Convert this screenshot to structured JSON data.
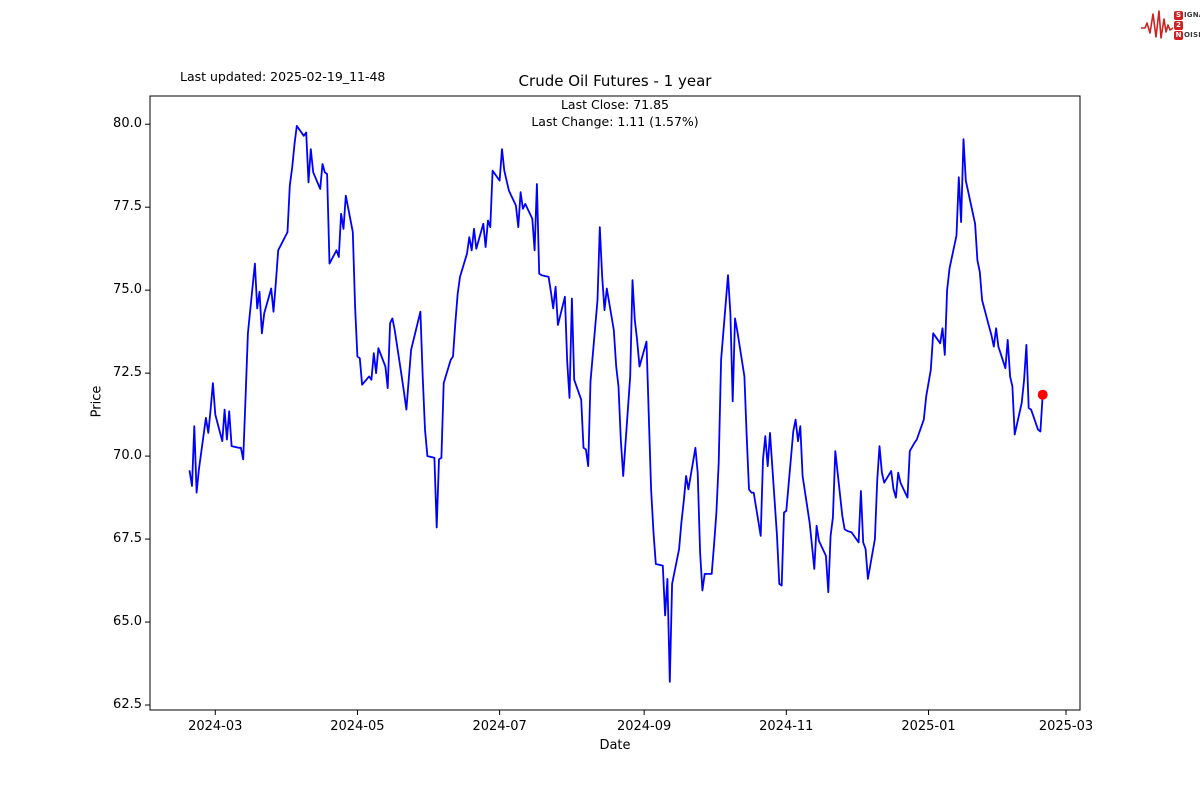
{
  "header": {
    "last_updated": "Last updated: 2025-02-19_11-48",
    "title": "Crude Oil Futures - 1 year",
    "subtitle_close": "Last Close: 71.85",
    "subtitle_change": "Last Change: 1.11 (1.57%)"
  },
  "logo": {
    "color": "#cc2222",
    "rows": [
      {
        "box": "S",
        "rest": "IGNAL"
      },
      {
        "box": "2",
        "rest": ""
      },
      {
        "box": "N",
        "rest": "OISE"
      }
    ]
  },
  "chart_data": {
    "type": "line",
    "title": "Crude Oil Futures - 1 year",
    "xlabel": "Date",
    "ylabel": "Price",
    "legend": "none",
    "grid": false,
    "line_color": "#0000ff",
    "last_point_color": "#ff0000",
    "last_close": 71.85,
    "last_change": 1.11,
    "last_change_pct": 1.57,
    "ylim": [
      62.35,
      80.85
    ],
    "xlim": [
      "2024-02-02",
      "2025-03-07"
    ],
    "y_ticks": [
      62.5,
      65.0,
      67.5,
      70.0,
      72.5,
      75.0,
      77.5,
      80.0
    ],
    "x_ticks": [
      {
        "date": "2024-03-01",
        "label": "2024-03"
      },
      {
        "date": "2024-05-01",
        "label": "2024-05"
      },
      {
        "date": "2024-07-01",
        "label": "2024-07"
      },
      {
        "date": "2024-09-01",
        "label": "2024-09"
      },
      {
        "date": "2024-11-01",
        "label": "2024-11"
      },
      {
        "date": "2025-01-01",
        "label": "2025-01"
      },
      {
        "date": "2025-03-01",
        "label": "2025-03"
      }
    ],
    "series": [
      {
        "name": "Crude Oil Futures",
        "points": [
          [
            "2024-02-19",
            69.55
          ],
          [
            "2024-02-20",
            69.1
          ],
          [
            "2024-02-21",
            70.9
          ],
          [
            "2024-02-22",
            68.9
          ],
          [
            "2024-02-23",
            69.6
          ],
          [
            "2024-02-26",
            71.15
          ],
          [
            "2024-02-27",
            70.7
          ],
          [
            "2024-02-28",
            71.4
          ],
          [
            "2024-02-29",
            72.2
          ],
          [
            "2024-03-01",
            71.25
          ],
          [
            "2024-03-04",
            70.45
          ],
          [
            "2024-03-05",
            71.4
          ],
          [
            "2024-03-06",
            70.5
          ],
          [
            "2024-03-07",
            71.35
          ],
          [
            "2024-03-08",
            70.3
          ],
          [
            "2024-03-11",
            70.25
          ],
          [
            "2024-03-12",
            70.25
          ],
          [
            "2024-03-13",
            69.9
          ],
          [
            "2024-03-14",
            71.8
          ],
          [
            "2024-03-15",
            73.7
          ],
          [
            "2024-03-18",
            75.8
          ],
          [
            "2024-03-19",
            74.45
          ],
          [
            "2024-03-20",
            74.95
          ],
          [
            "2024-03-21",
            73.7
          ],
          [
            "2024-03-22",
            74.3
          ],
          [
            "2024-03-25",
            75.05
          ],
          [
            "2024-03-26",
            74.35
          ],
          [
            "2024-03-27",
            75.25
          ],
          [
            "2024-03-28",
            76.2
          ],
          [
            "2024-04-01",
            76.75
          ],
          [
            "2024-04-02",
            78.15
          ],
          [
            "2024-04-03",
            78.7
          ],
          [
            "2024-04-04",
            79.4
          ],
          [
            "2024-04-05",
            79.95
          ],
          [
            "2024-04-08",
            79.65
          ],
          [
            "2024-04-09",
            79.75
          ],
          [
            "2024-04-10",
            78.25
          ],
          [
            "2024-04-11",
            79.25
          ],
          [
            "2024-04-12",
            78.55
          ],
          [
            "2024-04-15",
            78.05
          ],
          [
            "2024-04-16",
            78.8
          ],
          [
            "2024-04-17",
            78.55
          ],
          [
            "2024-04-18",
            78.5
          ],
          [
            "2024-04-19",
            75.8
          ],
          [
            "2024-04-22",
            76.2
          ],
          [
            "2024-04-23",
            76.0
          ],
          [
            "2024-04-24",
            77.3
          ],
          [
            "2024-04-25",
            76.85
          ],
          [
            "2024-04-26",
            77.85
          ],
          [
            "2024-04-29",
            76.75
          ],
          [
            "2024-04-30",
            74.5
          ],
          [
            "2024-05-01",
            73.0
          ],
          [
            "2024-05-02",
            72.95
          ],
          [
            "2024-05-03",
            72.15
          ],
          [
            "2024-05-06",
            72.4
          ],
          [
            "2024-05-07",
            72.3
          ],
          [
            "2024-05-08",
            73.1
          ],
          [
            "2024-05-09",
            72.5
          ],
          [
            "2024-05-10",
            73.25
          ],
          [
            "2024-05-13",
            72.7
          ],
          [
            "2024-05-14",
            72.05
          ],
          [
            "2024-05-15",
            74.0
          ],
          [
            "2024-05-16",
            74.15
          ],
          [
            "2024-05-17",
            73.8
          ],
          [
            "2024-05-20",
            72.4
          ],
          [
            "2024-05-21",
            71.9
          ],
          [
            "2024-05-22",
            71.4
          ],
          [
            "2024-05-23",
            72.3
          ],
          [
            "2024-05-24",
            73.2
          ],
          [
            "2024-05-28",
            74.35
          ],
          [
            "2024-05-29",
            72.4
          ],
          [
            "2024-05-30",
            70.8
          ],
          [
            "2024-05-31",
            70.0
          ],
          [
            "2024-06-03",
            69.95
          ],
          [
            "2024-06-04",
            67.85
          ],
          [
            "2024-06-05",
            69.9
          ],
          [
            "2024-06-06",
            69.95
          ],
          [
            "2024-06-07",
            72.2
          ],
          [
            "2024-06-10",
            72.9
          ],
          [
            "2024-06-11",
            73.0
          ],
          [
            "2024-06-12",
            74.0
          ],
          [
            "2024-06-13",
            74.9
          ],
          [
            "2024-06-14",
            75.4
          ],
          [
            "2024-06-17",
            76.1
          ],
          [
            "2024-06-18",
            76.6
          ],
          [
            "2024-06-19",
            76.2
          ],
          [
            "2024-06-20",
            76.85
          ],
          [
            "2024-06-21",
            76.25
          ],
          [
            "2024-06-24",
            77.0
          ],
          [
            "2024-06-25",
            76.3
          ],
          [
            "2024-06-26",
            77.1
          ],
          [
            "2024-06-27",
            76.9
          ],
          [
            "2024-06-28",
            78.6
          ],
          [
            "2024-07-01",
            78.3
          ],
          [
            "2024-07-02",
            79.25
          ],
          [
            "2024-07-03",
            78.6
          ],
          [
            "2024-07-05",
            78.0
          ],
          [
            "2024-07-08",
            77.55
          ],
          [
            "2024-07-09",
            76.9
          ],
          [
            "2024-07-10",
            77.95
          ],
          [
            "2024-07-11",
            77.45
          ],
          [
            "2024-07-12",
            77.6
          ],
          [
            "2024-07-15",
            77.15
          ],
          [
            "2024-07-16",
            76.2
          ],
          [
            "2024-07-17",
            78.2
          ],
          [
            "2024-07-18",
            75.5
          ],
          [
            "2024-07-19",
            75.45
          ],
          [
            "2024-07-22",
            75.4
          ],
          [
            "2024-07-23",
            74.95
          ],
          [
            "2024-07-24",
            74.45
          ],
          [
            "2024-07-25",
            75.1
          ],
          [
            "2024-07-26",
            73.95
          ],
          [
            "2024-07-29",
            74.8
          ],
          [
            "2024-07-30",
            72.85
          ],
          [
            "2024-07-31",
            71.75
          ],
          [
            "2024-08-01",
            74.75
          ],
          [
            "2024-08-02",
            72.3
          ],
          [
            "2024-08-05",
            71.7
          ],
          [
            "2024-08-06",
            70.25
          ],
          [
            "2024-08-07",
            70.2
          ],
          [
            "2024-08-08",
            69.7
          ],
          [
            "2024-08-09",
            72.25
          ],
          [
            "2024-08-12",
            74.7
          ],
          [
            "2024-08-13",
            76.9
          ],
          [
            "2024-08-14",
            75.4
          ],
          [
            "2024-08-15",
            74.4
          ],
          [
            "2024-08-16",
            75.05
          ],
          [
            "2024-08-19",
            73.8
          ],
          [
            "2024-08-20",
            72.7
          ],
          [
            "2024-08-21",
            72.1
          ],
          [
            "2024-08-22",
            70.5
          ],
          [
            "2024-08-23",
            69.4
          ],
          [
            "2024-08-26",
            72.4
          ],
          [
            "2024-08-27",
            75.3
          ],
          [
            "2024-08-28",
            74.1
          ],
          [
            "2024-08-29",
            73.5
          ],
          [
            "2024-08-30",
            72.7
          ],
          [
            "2024-09-02",
            73.45
          ],
          [
            "2024-09-03",
            71.2
          ],
          [
            "2024-09-04",
            69.0
          ],
          [
            "2024-09-05",
            67.7
          ],
          [
            "2024-09-06",
            66.75
          ],
          [
            "2024-09-09",
            66.7
          ],
          [
            "2024-09-10",
            65.2
          ],
          [
            "2024-09-11",
            66.3
          ],
          [
            "2024-09-12",
            63.2
          ],
          [
            "2024-09-13",
            66.15
          ],
          [
            "2024-09-16",
            67.2
          ],
          [
            "2024-09-17",
            68.0
          ],
          [
            "2024-09-18",
            68.65
          ],
          [
            "2024-09-19",
            69.4
          ],
          [
            "2024-09-20",
            69.0
          ],
          [
            "2024-09-23",
            70.25
          ],
          [
            "2024-09-24",
            69.5
          ],
          [
            "2024-09-25",
            67.1
          ],
          [
            "2024-09-26",
            65.95
          ],
          [
            "2024-09-27",
            66.45
          ],
          [
            "2024-09-30",
            66.45
          ],
          [
            "2024-10-01",
            67.35
          ],
          [
            "2024-10-02",
            68.3
          ],
          [
            "2024-10-03",
            69.8
          ],
          [
            "2024-10-04",
            72.9
          ],
          [
            "2024-10-07",
            75.45
          ],
          [
            "2024-10-08",
            74.3
          ],
          [
            "2024-10-09",
            71.65
          ],
          [
            "2024-10-10",
            74.15
          ],
          [
            "2024-10-11",
            73.75
          ],
          [
            "2024-10-14",
            72.4
          ],
          [
            "2024-10-15",
            70.6
          ],
          [
            "2024-10-16",
            69.0
          ],
          [
            "2024-10-17",
            68.9
          ],
          [
            "2024-10-18",
            68.9
          ],
          [
            "2024-10-21",
            67.6
          ],
          [
            "2024-10-22",
            69.9
          ],
          [
            "2024-10-23",
            70.6
          ],
          [
            "2024-10-24",
            69.7
          ],
          [
            "2024-10-25",
            70.7
          ],
          [
            "2024-10-28",
            67.6
          ],
          [
            "2024-10-29",
            66.15
          ],
          [
            "2024-10-30",
            66.1
          ],
          [
            "2024-10-31",
            68.3
          ],
          [
            "2024-11-01",
            68.35
          ],
          [
            "2024-11-04",
            70.75
          ],
          [
            "2024-11-05",
            71.1
          ],
          [
            "2024-11-06",
            70.45
          ],
          [
            "2024-11-07",
            70.9
          ],
          [
            "2024-11-08",
            69.4
          ],
          [
            "2024-11-11",
            68.0
          ],
          [
            "2024-11-12",
            67.3
          ],
          [
            "2024-11-13",
            66.6
          ],
          [
            "2024-11-14",
            67.9
          ],
          [
            "2024-11-15",
            67.45
          ],
          [
            "2024-11-18",
            67.0
          ],
          [
            "2024-11-19",
            65.9
          ],
          [
            "2024-11-20",
            67.6
          ],
          [
            "2024-11-21",
            68.15
          ],
          [
            "2024-11-22",
            70.15
          ],
          [
            "2024-11-25",
            68.2
          ],
          [
            "2024-11-26",
            67.8
          ],
          [
            "2024-11-27",
            67.75
          ],
          [
            "2024-11-29",
            67.7
          ],
          [
            "2024-12-02",
            67.4
          ],
          [
            "2024-12-03",
            68.95
          ],
          [
            "2024-12-04",
            67.4
          ],
          [
            "2024-12-05",
            67.2
          ],
          [
            "2024-12-06",
            66.3
          ],
          [
            "2024-12-09",
            67.5
          ],
          [
            "2024-12-10",
            69.25
          ],
          [
            "2024-12-11",
            70.3
          ],
          [
            "2024-12-12",
            69.5
          ],
          [
            "2024-12-13",
            69.2
          ],
          [
            "2024-12-16",
            69.55
          ],
          [
            "2024-12-17",
            69.0
          ],
          [
            "2024-12-18",
            68.75
          ],
          [
            "2024-12-19",
            69.5
          ],
          [
            "2024-12-20",
            69.2
          ],
          [
            "2024-12-23",
            68.75
          ],
          [
            "2024-12-24",
            70.15
          ],
          [
            "2024-12-26",
            70.4
          ],
          [
            "2024-12-27",
            70.5
          ],
          [
            "2024-12-30",
            71.1
          ],
          [
            "2024-12-31",
            71.8
          ],
          [
            "2025-01-02",
            72.6
          ],
          [
            "2025-01-03",
            73.7
          ],
          [
            "2025-01-06",
            73.4
          ],
          [
            "2025-01-07",
            73.85
          ],
          [
            "2025-01-08",
            73.05
          ],
          [
            "2025-01-09",
            75.0
          ],
          [
            "2025-01-10",
            75.65
          ],
          [
            "2025-01-13",
            76.65
          ],
          [
            "2025-01-14",
            78.4
          ],
          [
            "2025-01-15",
            77.05
          ],
          [
            "2025-01-16",
            79.55
          ],
          [
            "2025-01-17",
            78.3
          ],
          [
            "2025-01-21",
            77.0
          ],
          [
            "2025-01-22",
            75.9
          ],
          [
            "2025-01-23",
            75.55
          ],
          [
            "2025-01-24",
            74.7
          ],
          [
            "2025-01-27",
            73.9
          ],
          [
            "2025-01-28",
            73.65
          ],
          [
            "2025-01-29",
            73.3
          ],
          [
            "2025-01-30",
            73.85
          ],
          [
            "2025-01-31",
            73.3
          ],
          [
            "2025-02-03",
            72.65
          ],
          [
            "2025-02-04",
            73.5
          ],
          [
            "2025-02-05",
            72.4
          ],
          [
            "2025-02-06",
            72.1
          ],
          [
            "2025-02-07",
            70.65
          ],
          [
            "2025-02-10",
            71.6
          ],
          [
            "2025-02-11",
            72.3
          ],
          [
            "2025-02-12",
            73.35
          ],
          [
            "2025-02-13",
            71.45
          ],
          [
            "2025-02-14",
            71.4
          ],
          [
            "2025-02-17",
            70.8
          ],
          [
            "2025-02-18",
            70.74
          ],
          [
            "2025-02-19",
            71.85
          ]
        ]
      }
    ]
  }
}
